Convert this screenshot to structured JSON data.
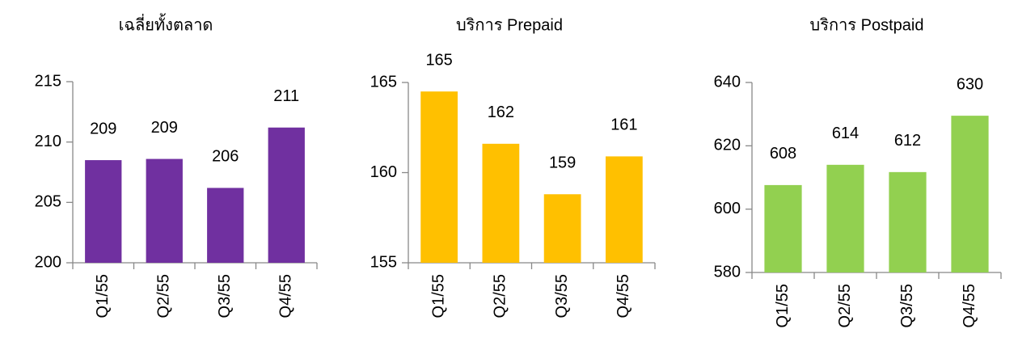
{
  "chart_data": [
    {
      "type": "bar",
      "title": "เฉลี่ยทั้งตลาด",
      "categories": [
        "Q1/55",
        "Q2/55",
        "Q3/55",
        "Q4/55"
      ],
      "values": [
        208.5,
        208.6,
        206.2,
        211.2
      ],
      "value_labels": [
        "209",
        "209",
        "206",
        "211"
      ],
      "color": "#7030a0",
      "ylim": [
        200,
        215
      ],
      "yticks": [
        200,
        205,
        210,
        215
      ]
    },
    {
      "type": "bar",
      "title": "บริการ Prepaid",
      "categories": [
        "Q1/55",
        "Q2/55",
        "Q3/55",
        "Q4/55"
      ],
      "values": [
        164.5,
        161.6,
        158.8,
        160.9
      ],
      "value_labels": [
        "165",
        "162",
        "159",
        "161"
      ],
      "color": "#ffc000",
      "ylim": [
        155,
        165
      ],
      "yticks": [
        155,
        160,
        165
      ]
    },
    {
      "type": "bar",
      "title": "บริการ Postpaid",
      "categories": [
        "Q1/55",
        "Q2/55",
        "Q3/55",
        "Q4/55"
      ],
      "values": [
        607.6,
        614.0,
        611.7,
        629.5
      ],
      "value_labels": [
        "608",
        "614",
        "612",
        "630"
      ],
      "color": "#92d050",
      "ylim": [
        580,
        640
      ],
      "yticks": [
        580,
        600,
        620,
        640
      ]
    }
  ]
}
